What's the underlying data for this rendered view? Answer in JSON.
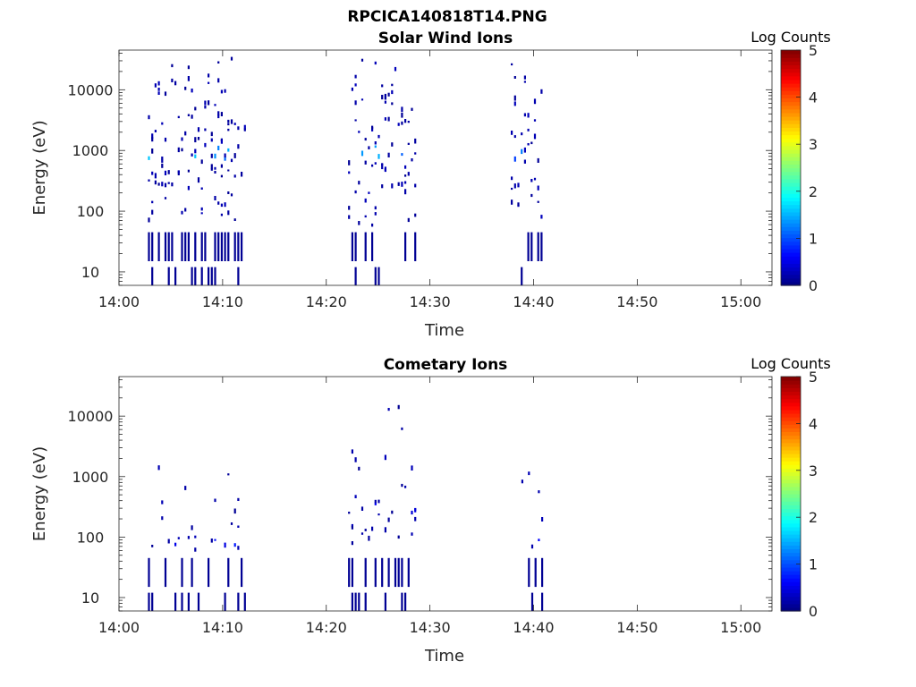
{
  "figure_title": "RPCICA140818T14.PNG",
  "chart_data": [
    {
      "type": "heatmap",
      "title": "Solar Wind Ions",
      "xlabel": "Time",
      "ylabel": "Energy (eV)",
      "colorbar_label": "Log Counts",
      "x_ticks": [
        "14:00",
        "14:10",
        "14:20",
        "14:30",
        "14:40",
        "14:50",
        "15:00"
      ],
      "x_range_minutes": [
        0,
        63
      ],
      "y_scale": "log",
      "y_range": [
        6,
        45000
      ],
      "y_ticks": [
        "10",
        "100",
        "1000",
        "10000"
      ],
      "colorbar_range": [
        0,
        5
      ],
      "colorbar_ticks": [
        "0",
        "1",
        "2",
        "3",
        "4",
        "5"
      ],
      "clusters": [
        {
          "t_start": 2.8,
          "t_end": 12.2,
          "peak_energy": 1000,
          "peak_log_counts": 1.6
        },
        {
          "t_start": 22.1,
          "t_end": 28.5,
          "peak_energy": 1000,
          "peak_log_counts": 1.5
        },
        {
          "t_start": 37.8,
          "t_end": 40.8,
          "peak_energy": 1000,
          "peak_log_counts": 1.3
        }
      ]
    },
    {
      "type": "heatmap",
      "title": "Cometary Ions",
      "xlabel": "Time",
      "ylabel": "Energy (eV)",
      "colorbar_label": "Log Counts",
      "x_ticks": [
        "14:00",
        "14:10",
        "14:20",
        "14:30",
        "14:40",
        "14:50",
        "15:00"
      ],
      "x_range_minutes": [
        0,
        63
      ],
      "y_scale": "log",
      "y_range": [
        6,
        45000
      ],
      "y_ticks": [
        "10",
        "100",
        "1000",
        "10000"
      ],
      "colorbar_range": [
        0,
        5
      ],
      "colorbar_ticks": [
        "0",
        "1",
        "2",
        "3",
        "4",
        "5"
      ],
      "clusters": [
        {
          "t_start": 2.8,
          "t_end": 12.2,
          "peak_energy": 100,
          "peak_log_counts": 0.8
        },
        {
          "t_start": 22.1,
          "t_end": 28.5,
          "peak_energy": 300,
          "peak_log_counts": 0.6
        },
        {
          "t_start": 38.5,
          "t_end": 40.8,
          "peak_energy": 100,
          "peak_log_counts": 0.8
        }
      ]
    }
  ]
}
